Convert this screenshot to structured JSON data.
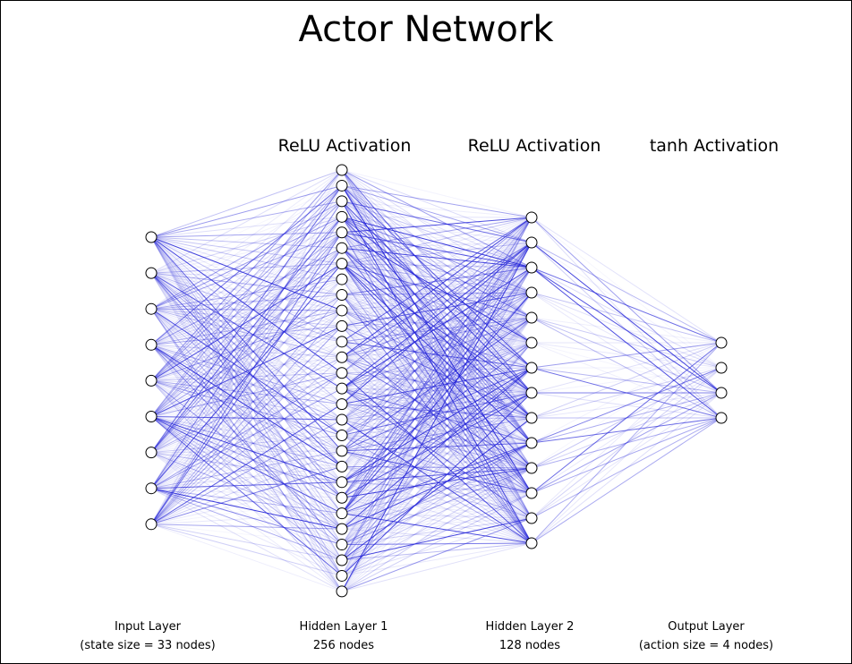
{
  "title": "Actor Network",
  "activations": [
    {
      "id": "hidden1",
      "label": "ReLU Activation"
    },
    {
      "id": "hidden2",
      "label": "ReLU Activation"
    },
    {
      "id": "output",
      "label": "tanh Activation"
    }
  ],
  "layers": [
    {
      "id": "input",
      "name": "Input Layer",
      "detail": "(state size = 33 nodes)",
      "drawn_nodes": 9
    },
    {
      "id": "hidden1",
      "name": "Hidden Layer 1",
      "detail": "256 nodes",
      "drawn_nodes": 28
    },
    {
      "id": "hidden2",
      "name": "Hidden Layer 2",
      "detail": "128 nodes",
      "drawn_nodes": 14
    },
    {
      "id": "output",
      "name": "Output Layer",
      "detail": "(action size = 4 nodes)",
      "drawn_nodes": 4
    }
  ],
  "colors": {
    "edge": "#2020d8",
    "node_stroke": "#000000",
    "node_fill": "#ffffff",
    "background": "#ffffff"
  }
}
